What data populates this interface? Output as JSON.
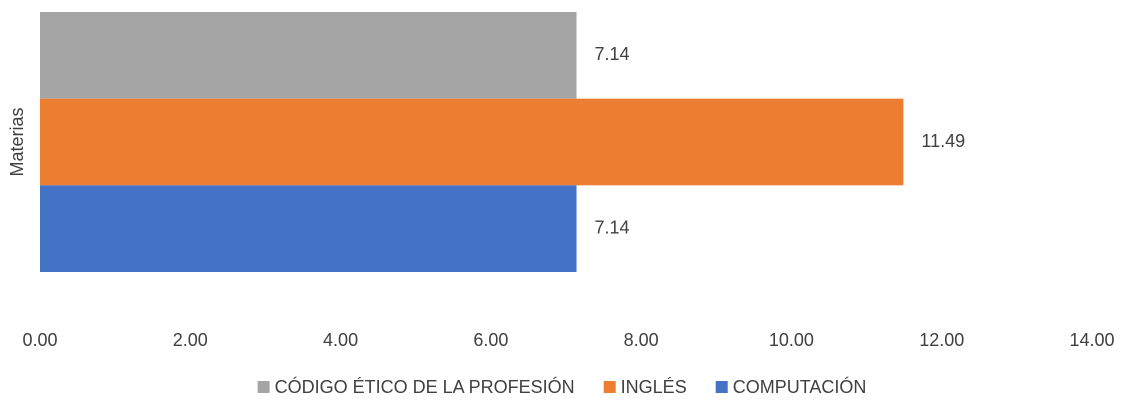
{
  "chart_data": {
    "type": "bar",
    "orientation": "horizontal",
    "categories": [
      "Materias"
    ],
    "series": [
      {
        "name": "CÓDIGO ÉTICO DE LA PROFESIÓN",
        "color": "#a5a5a5",
        "values": [
          7.14
        ]
      },
      {
        "name": "INGLÉS",
        "color": "#ed7d31",
        "values": [
          11.49
        ]
      },
      {
        "name": "COMPUTACIÓN",
        "color": "#4472c4",
        "values": [
          7.14
        ]
      }
    ],
    "xlim": [
      0,
      14
    ],
    "xticks": [
      {
        "value": 0,
        "label": "0.00"
      },
      {
        "value": 2,
        "label": "2.00"
      },
      {
        "value": 4,
        "label": "4.00"
      },
      {
        "value": 6,
        "label": "6.00"
      },
      {
        "value": 8,
        "label": "8.00"
      },
      {
        "value": 10,
        "label": "10.00"
      },
      {
        "value": 12,
        "label": "12.00"
      },
      {
        "value": 14,
        "label": "14.00"
      }
    ],
    "grid": false,
    "legend": "bottom"
  }
}
